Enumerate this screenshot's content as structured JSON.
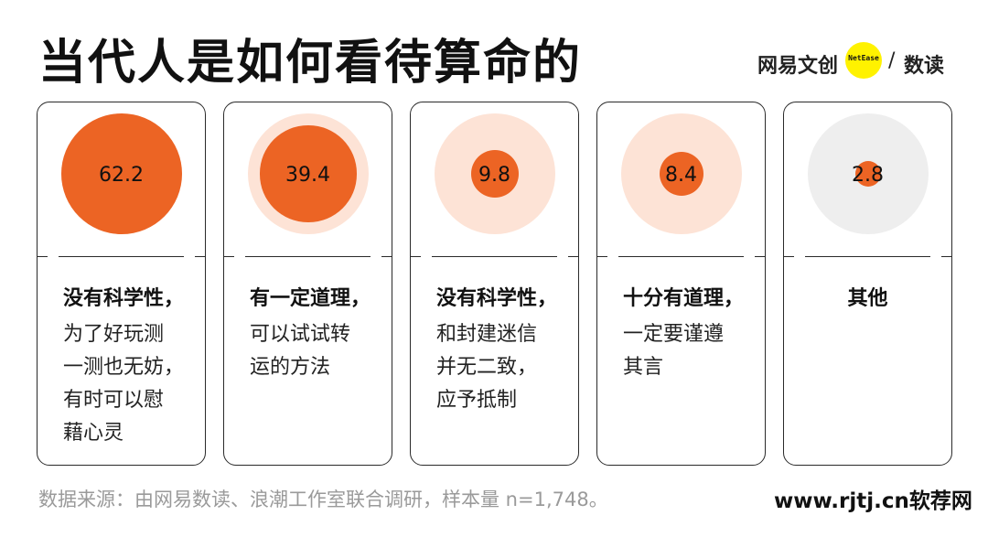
{
  "title": "当代人是如何看待算命的",
  "logo": {
    "left": "网易文创",
    "dot": "NetEase",
    "slash": "/",
    "right": "数读"
  },
  "chart_data": {
    "type": "bubble",
    "unit": "%",
    "items": [
      {
        "value": "62.2",
        "num": 62.2,
        "headline": "没有科学性，",
        "lines": [
          "为了好玩测",
          "一测也无妨，",
          "有时可以慰",
          "藉心灵"
        ]
      },
      {
        "value": "39.4",
        "num": 39.4,
        "headline": "有一定道理，",
        "lines": [
          "可以试试转",
          "运的方法"
        ]
      },
      {
        "value": "9.8",
        "num": 9.8,
        "headline": "没有科学性，",
        "lines": [
          "和封建迷信",
          "并无二致，",
          "应予抵制"
        ]
      },
      {
        "value": "8.4",
        "num": 8.4,
        "headline": "十分有道理，",
        "lines": [
          "一定要谨遵",
          "其言"
        ]
      },
      {
        "value": "2.8",
        "num": 2.8,
        "headline": "其他",
        "lines": []
      }
    ],
    "colors": {
      "dot": "#ec6424",
      "halo": "#fde3d6",
      "halo_other": "#eeeeee"
    }
  },
  "footer": "数据来源：由网易数读、浪潮工作室联合调研，样本量 n=1,748。",
  "watermark": "www.rjtj.cn软荐网"
}
